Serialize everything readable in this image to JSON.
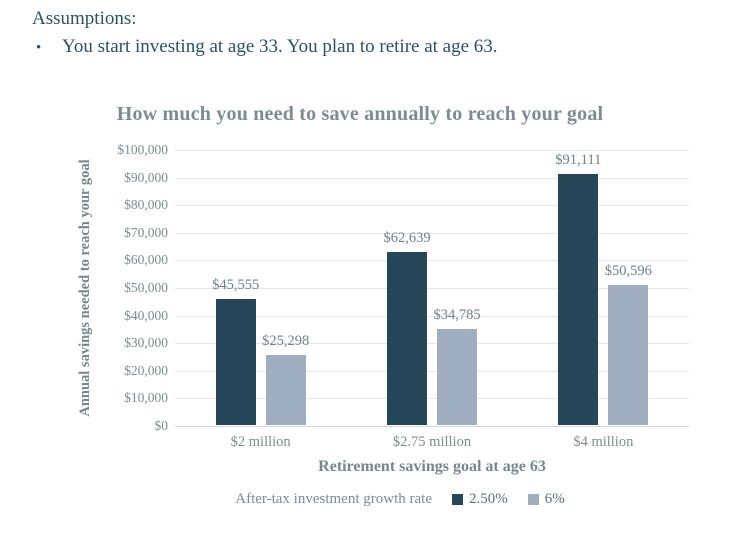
{
  "assumptions": {
    "heading": "Assumptions:",
    "bullet": "•",
    "items": [
      "You start investing at age 33. You plan to retire at age 63."
    ]
  },
  "chart_data": {
    "type": "bar",
    "title": "How much you need to save annually to reach your goal",
    "xlabel": "Retirement savings goal at age 63",
    "ylabel": "Annual savings needed to reach your goal",
    "categories": [
      "$2 million",
      "$2.75 million",
      "$4 million"
    ],
    "series": [
      {
        "name": "2.50%",
        "color": "#26465a",
        "values": [
          45555,
          62639,
          91111
        ],
        "labels": [
          "$45,555",
          "$62,639",
          "$91,111"
        ]
      },
      {
        "name": "6%",
        "color": "#a0afc0",
        "values": [
          25298,
          34785,
          50596
        ],
        "labels": [
          "$25,298",
          "$34,785",
          "$50,596"
        ]
      }
    ],
    "legend_title": "After-tax investment growth rate",
    "legend_position": "bottom",
    "ylim": [
      0,
      100000
    ],
    "ytick_step": 10000,
    "ytick_labels": [
      "$0",
      "$10,000",
      "$20,000",
      "$30,000",
      "$40,000",
      "$50,000",
      "$60,000",
      "$70,000",
      "$80,000",
      "$90,000",
      "$100,000"
    ],
    "grid": true
  },
  "colors": {
    "text_dark_blue": "#2a5168",
    "chart_text_gray": "#7c8c8f",
    "data_label_gray": "#6e8287",
    "gridline": "#e4e6e7",
    "series_dark": "#26465a",
    "series_light": "#a0afc0"
  }
}
